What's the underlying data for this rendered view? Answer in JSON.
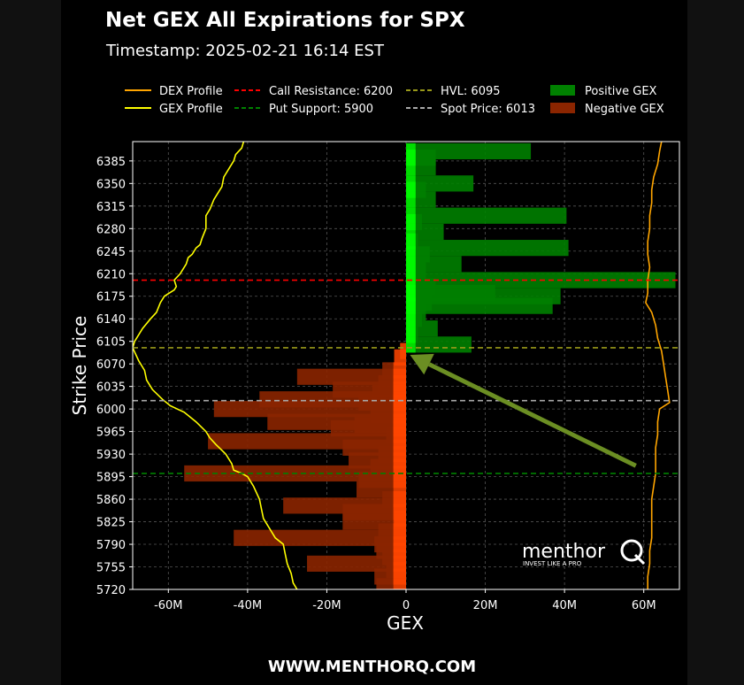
{
  "header": {
    "title": "Net GEX All Expirations for SPX",
    "timestamp": "Timestamp: 2025-02-21 16:14 EST"
  },
  "footer": {
    "url": "WWW.MENTHORQ.COM"
  },
  "watermark": {
    "brand": "menthor",
    "tagline": "INVEST LIKE A PRO"
  },
  "colors": {
    "positive": "#008000",
    "positive_bright": "#00ff00",
    "negative": "#8b2500",
    "negative_bright": "#ff4500",
    "dex": "#ffa500",
    "gex": "#ffff00",
    "call_resistance": "#ff0000",
    "put_support": "#008000",
    "hvl": "#9a9a1a",
    "spot": "#aaaaaa",
    "arrow": "#6b8e23"
  },
  "chart_data": {
    "type": "bar",
    "orientation": "horizontal",
    "xlabel": "GEX",
    "ylabel": "Strike Price",
    "xlim": [
      -69,
      69
    ],
    "ylim": [
      5720,
      6415
    ],
    "x_unit": "M",
    "xticks": [
      -60,
      -40,
      -20,
      0,
      20,
      40,
      60
    ],
    "xtick_labels": [
      "-60M",
      "-40M",
      "-20M",
      "0",
      "20M",
      "40M",
      "60M"
    ],
    "yticks": [
      5720,
      5755,
      5790,
      5825,
      5860,
      5895,
      5930,
      5965,
      6000,
      6035,
      6070,
      6105,
      6140,
      6175,
      6210,
      6245,
      6280,
      6315,
      6350,
      6385
    ],
    "grid": true,
    "legend_position": "top",
    "legend": [
      {
        "label": "DEX Profile",
        "kind": "line",
        "color": "#ffa500",
        "dash": "solid"
      },
      {
        "label": "GEX Profile",
        "kind": "line",
        "color": "#ffff00",
        "dash": "solid"
      },
      {
        "label": "Call Resistance: 6200",
        "kind": "line",
        "color": "#ff0000",
        "dash": "dashed"
      },
      {
        "label": "Put Support: 5900",
        "kind": "line",
        "color": "#008000",
        "dash": "dashed"
      },
      {
        "label": "HVL: 6095",
        "kind": "line",
        "color": "#9a9a1a",
        "dash": "dashed"
      },
      {
        "label": "Spot Price: 6013",
        "kind": "line",
        "color": "#aaaaaa",
        "dash": "dashed"
      },
      {
        "label": "Positive GEX",
        "kind": "patch",
        "color": "#008000"
      },
      {
        "label": "Negative GEX",
        "kind": "patch",
        "color": "#8b2500"
      }
    ],
    "levels": {
      "call_resistance": 6200,
      "put_support": 5900,
      "hvl": 6095,
      "spot": 6013
    },
    "bar_height": 25,
    "positive_bars": [
      {
        "strike": 6400,
        "value": 31.5
      },
      {
        "strike": 6390,
        "value": 7.5
      },
      {
        "strike": 6375,
        "value": 7.5
      },
      {
        "strike": 6350,
        "value": 17
      },
      {
        "strike": 6340,
        "value": 5
      },
      {
        "strike": 6325,
        "value": 7.5
      },
      {
        "strike": 6300,
        "value": 40.5
      },
      {
        "strike": 6290,
        "value": 4
      },
      {
        "strike": 6275,
        "value": 9.5
      },
      {
        "strike": 6260,
        "value": 3
      },
      {
        "strike": 6250,
        "value": 41
      },
      {
        "strike": 6240,
        "value": 6
      },
      {
        "strike": 6225,
        "value": 14
      },
      {
        "strike": 6215,
        "value": 5
      },
      {
        "strike": 6200,
        "value": 68
      },
      {
        "strike": 6190,
        "value": 7.5
      },
      {
        "strike": 6180,
        "value": 22.5
      },
      {
        "strike": 6175,
        "value": 39
      },
      {
        "strike": 6165,
        "value": 6.5
      },
      {
        "strike": 6160,
        "value": 37
      },
      {
        "strike": 6150,
        "value": 5
      },
      {
        "strike": 6140,
        "value": 4
      },
      {
        "strike": 6125,
        "value": 8
      },
      {
        "strike": 6115,
        "value": 3
      },
      {
        "strike": 6100,
        "value": 16.5
      }
    ],
    "negative_bars": [
      {
        "strike": 6090,
        "value": -1.5
      },
      {
        "strike": 6080,
        "value": -3
      },
      {
        "strike": 6060,
        "value": -6
      },
      {
        "strike": 6050,
        "value": -27.5
      },
      {
        "strike": 6040,
        "value": -7
      },
      {
        "strike": 6030,
        "value": -18.5
      },
      {
        "strike": 6025,
        "value": -8.5
      },
      {
        "strike": 6015,
        "value": -37
      },
      {
        "strike": 6010,
        "value": -12
      },
      {
        "strike": 6000,
        "value": -48.5
      },
      {
        "strike": 5990,
        "value": -9
      },
      {
        "strike": 5980,
        "value": -35
      },
      {
        "strike": 5975,
        "value": -13
      },
      {
        "strike": 5970,
        "value": -19
      },
      {
        "strike": 5960,
        "value": -5
      },
      {
        "strike": 5950,
        "value": -50
      },
      {
        "strike": 5940,
        "value": -16
      },
      {
        "strike": 5930,
        "value": -7
      },
      {
        "strike": 5920,
        "value": -14.5
      },
      {
        "strike": 5910,
        "value": -9
      },
      {
        "strike": 5900,
        "value": -56
      },
      {
        "strike": 5890,
        "value": -12
      },
      {
        "strike": 5875,
        "value": -12.5
      },
      {
        "strike": 5860,
        "value": -6
      },
      {
        "strike": 5850,
        "value": -31
      },
      {
        "strike": 5840,
        "value": -16
      },
      {
        "strike": 5830,
        "value": -3
      },
      {
        "strike": 5825,
        "value": -16
      },
      {
        "strike": 5810,
        "value": -7
      },
      {
        "strike": 5800,
        "value": -43.5
      },
      {
        "strike": 5790,
        "value": -8
      },
      {
        "strike": 5780,
        "value": -7.5
      },
      {
        "strike": 5770,
        "value": -6
      },
      {
        "strike": 5760,
        "value": -25
      },
      {
        "strike": 5750,
        "value": -5
      },
      {
        "strike": 5740,
        "value": -8
      },
      {
        "strike": 5725,
        "value": -7.5
      }
    ],
    "gex_profile": [
      [
        -41,
        6415
      ],
      [
        -41.5,
        6405
      ],
      [
        -43,
        6395
      ],
      [
        -43.5,
        6385
      ],
      [
        -44.5,
        6375
      ],
      [
        -46,
        6360
      ],
      [
        -46.5,
        6345
      ],
      [
        -47.5,
        6335
      ],
      [
        -48.5,
        6325
      ],
      [
        -49.5,
        6310
      ],
      [
        -50.5,
        6300
      ],
      [
        -50.5,
        6290
      ],
      [
        -50.5,
        6280
      ],
      [
        -51.5,
        6265
      ],
      [
        -52,
        6255
      ],
      [
        -53,
        6250
      ],
      [
        -54,
        6240
      ],
      [
        -55,
        6235
      ],
      [
        -55.5,
        6225
      ],
      [
        -56.5,
        6215
      ],
      [
        -57,
        6210
      ],
      [
        -58.5,
        6200
      ],
      [
        -58,
        6190
      ],
      [
        -58.5,
        6185
      ],
      [
        -61,
        6175
      ],
      [
        -62,
        6165
      ],
      [
        -63,
        6150
      ],
      [
        -64.5,
        6140
      ],
      [
        -66.5,
        6125
      ],
      [
        -68.5,
        6105
      ],
      [
        -69,
        6095
      ],
      [
        -67.5,
        6075
      ],
      [
        -66,
        6060
      ],
      [
        -65.5,
        6045
      ],
      [
        -64,
        6030
      ],
      [
        -61.5,
        6015
      ],
      [
        -59.5,
        6005
      ],
      [
        -56,
        5995
      ],
      [
        -53,
        5980
      ],
      [
        -50.5,
        5965
      ],
      [
        -49.5,
        5955
      ],
      [
        -48,
        5945
      ],
      [
        -45.5,
        5930
      ],
      [
        -44,
        5915
      ],
      [
        -43.5,
        5905
      ],
      [
        -41.5,
        5900
      ],
      [
        -40,
        5895
      ],
      [
        -38.5,
        5880
      ],
      [
        -37,
        5860
      ],
      [
        -36.5,
        5845
      ],
      [
        -36,
        5830
      ],
      [
        -34.5,
        5815
      ],
      [
        -33,
        5800
      ],
      [
        -31,
        5790
      ],
      [
        -30.5,
        5775
      ],
      [
        -30,
        5760
      ],
      [
        -29,
        5745
      ],
      [
        -28.5,
        5730
      ],
      [
        -27.5,
        5720
      ]
    ],
    "dex_profile": [
      [
        64.5,
        6415
      ],
      [
        64,
        6400
      ],
      [
        63.5,
        6380
      ],
      [
        62.5,
        6360
      ],
      [
        62,
        6340
      ],
      [
        62,
        6320
      ],
      [
        61.5,
        6300
      ],
      [
        61.5,
        6280
      ],
      [
        61,
        6260
      ],
      [
        61,
        6240
      ],
      [
        61.5,
        6220
      ],
      [
        61,
        6200
      ],
      [
        61,
        6180
      ],
      [
        60.5,
        6165
      ],
      [
        62,
        6150
      ],
      [
        63,
        6130
      ],
      [
        63.5,
        6110
      ],
      [
        64.5,
        6090
      ],
      [
        65,
        6070
      ],
      [
        65.5,
        6050
      ],
      [
        66,
        6030
      ],
      [
        66.5,
        6010
      ],
      [
        64,
        6000
      ],
      [
        63.5,
        5980
      ],
      [
        63.5,
        5960
      ],
      [
        63,
        5940
      ],
      [
        63,
        5920
      ],
      [
        63,
        5900
      ],
      [
        62.5,
        5880
      ],
      [
        62,
        5860
      ],
      [
        62,
        5840
      ],
      [
        62,
        5820
      ],
      [
        62,
        5800
      ],
      [
        61.5,
        5780
      ],
      [
        61.5,
        5760
      ],
      [
        61,
        5740
      ],
      [
        61,
        5720
      ]
    ],
    "annotation_arrow": {
      "from": [
        58,
        5912
      ],
      "to": [
        1,
        6084
      ]
    }
  }
}
